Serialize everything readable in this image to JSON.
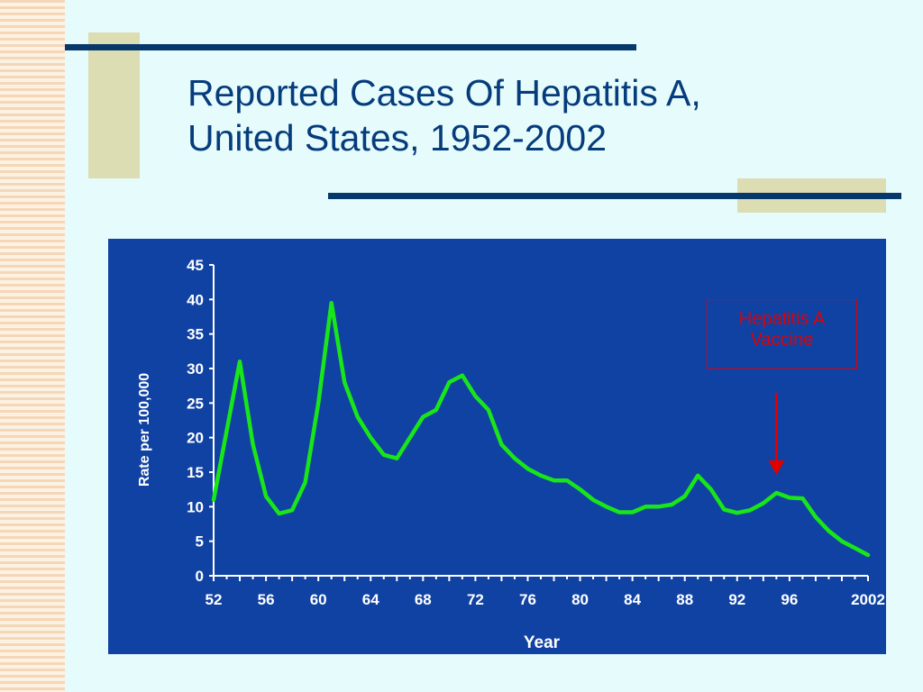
{
  "slide": {
    "title_line1": "Reported Cases Of Hepatitis A,",
    "title_line2": "United States, 1952-2002"
  },
  "colors": {
    "background": "#e6fcfc",
    "chart_panel": "#1042a3",
    "series_line": "#19e619",
    "title_text": "#063c7c",
    "accent_rule": "#06386b",
    "accent_block": "#ddddb3",
    "annotation": "#e00000"
  },
  "annotation": {
    "line1": "Hepatitis A",
    "line2": "Vaccine",
    "arrow_points_to_year": 1995
  },
  "chart_data": {
    "type": "line",
    "title": "",
    "xlabel": "Year",
    "ylabel": "Rate per 100,000",
    "xlim": [
      1952,
      2002
    ],
    "ylim": [
      0,
      45
    ],
    "grid": false,
    "yticks": [
      0,
      5,
      10,
      15,
      20,
      25,
      30,
      35,
      40,
      45
    ],
    "xticks": [
      {
        "value": 1952,
        "label": "52"
      },
      {
        "value": 1956,
        "label": "56"
      },
      {
        "value": 1960,
        "label": "60"
      },
      {
        "value": 1964,
        "label": "64"
      },
      {
        "value": 1968,
        "label": "68"
      },
      {
        "value": 1972,
        "label": "72"
      },
      {
        "value": 1976,
        "label": "76"
      },
      {
        "value": 1980,
        "label": "80"
      },
      {
        "value": 1984,
        "label": "84"
      },
      {
        "value": 1988,
        "label": "88"
      },
      {
        "value": 1992,
        "label": "92"
      },
      {
        "value": 1996,
        "label": "96"
      },
      {
        "value": 2002,
        "label": "2002"
      }
    ],
    "series": [
      {
        "x": [
          1952,
          1953,
          1954,
          1955,
          1956,
          1957,
          1958,
          1959,
          1960,
          1961,
          1962,
          1963,
          1964,
          1965,
          1966,
          1967,
          1968,
          1969,
          1970,
          1971,
          1972,
          1973,
          1974,
          1975,
          1976,
          1977,
          1978,
          1979,
          1980,
          1981,
          1982,
          1983,
          1984,
          1985,
          1986,
          1987,
          1988,
          1989,
          1990,
          1991,
          1992,
          1993,
          1994,
          1995,
          1996,
          1997,
          1998,
          1999,
          2000,
          2001,
          2002
        ],
        "y": [
          11,
          21,
          31,
          19,
          11.5,
          9,
          9.5,
          13.5,
          25,
          39.5,
          28,
          23,
          20,
          17.5,
          17,
          20,
          23,
          24,
          28,
          29,
          26,
          24,
          19,
          17,
          15.5,
          14.5,
          13.8,
          13.8,
          12.5,
          11,
          10,
          9.2,
          9.2,
          10,
          10,
          10.3,
          11.5,
          14.5,
          12.5,
          9.6,
          9.1,
          9.5,
          10.5,
          12,
          11.3,
          11.2,
          8.5,
          6.5,
          5,
          4,
          3
        ]
      }
    ]
  }
}
